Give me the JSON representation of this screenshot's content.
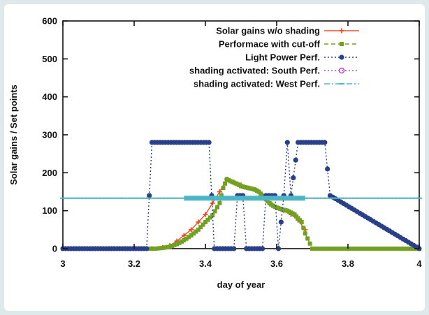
{
  "chart_data": {
    "type": "line",
    "title": "",
    "xlabel": "day of year",
    "ylabel": "Solar gains / Set points",
    "xlim": [
      3,
      4
    ],
    "ylim": [
      0,
      600
    ],
    "x_ticks": [
      "3",
      "3.2",
      "3.4",
      "3.6",
      "3.8",
      "4"
    ],
    "y_ticks": [
      "0",
      "100",
      "200",
      "300",
      "400",
      "500",
      "600"
    ],
    "grid": false,
    "legend_position": "top-right",
    "series": [
      {
        "name": "Solar gains w/o shading",
        "color": "#e8502a",
        "marker": "plus",
        "dash": "solid",
        "x": [
          3.25,
          3.28,
          3.3,
          3.32,
          3.34,
          3.36,
          3.38,
          3.4,
          3.42,
          3.44,
          3.46,
          3.48,
          3.5,
          3.52,
          3.54,
          3.56,
          3.58,
          3.6,
          3.62,
          3.64,
          3.66,
          3.68
        ],
        "values": [
          0,
          3,
          8,
          20,
          35,
          50,
          70,
          90,
          120,
          150,
          183,
          175,
          168,
          160,
          155,
          140,
          118,
          108,
          100,
          90,
          75,
          50
        ]
      },
      {
        "name": "Performace with cut-off",
        "color": "#73a020",
        "marker": "square",
        "dash": "dashed",
        "x": [
          3.0,
          3.1,
          3.2,
          3.24,
          3.26,
          3.28,
          3.3,
          3.32,
          3.34,
          3.36,
          3.38,
          3.4,
          3.42,
          3.44,
          3.45,
          3.46,
          3.47,
          3.48,
          3.49,
          3.5,
          3.51,
          3.52,
          3.53,
          3.54,
          3.55,
          3.56,
          3.57,
          3.58,
          3.59,
          3.6,
          3.61,
          3.62,
          3.63,
          3.64,
          3.65,
          3.66,
          3.67,
          3.68,
          3.7,
          3.72,
          3.75,
          3.8,
          3.9,
          4.0
        ],
        "values": [
          0,
          0,
          0,
          0,
          0,
          2,
          5,
          12,
          22,
          35,
          50,
          70,
          88,
          120,
          160,
          183,
          178,
          174,
          170,
          165,
          162,
          160,
          158,
          155,
          150,
          140,
          130,
          120,
          113,
          108,
          105,
          102,
          100,
          95,
          90,
          80,
          70,
          40,
          0,
          0,
          0,
          0,
          0,
          0
        ]
      },
      {
        "name": "Light Power Perf.",
        "color": "#2a3f8a",
        "marker": "star",
        "dash": "dotted",
        "x": [
          3.0,
          3.235,
          3.25,
          3.41,
          3.425,
          3.48,
          3.49,
          3.505,
          3.515,
          3.56,
          3.57,
          3.595,
          3.605,
          3.62,
          3.63,
          3.64,
          3.66,
          3.735,
          3.75,
          4.0
        ],
        "values": [
          0,
          0,
          280,
          280,
          0,
          0,
          140,
          140,
          0,
          0,
          140,
          140,
          0,
          140,
          280,
          140,
          280,
          280,
          140,
          0
        ]
      },
      {
        "name": "shading activated: South Perf.",
        "color": "#b04abf",
        "marker": "circle",
        "dash": "dotted",
        "x": [],
        "values": []
      },
      {
        "name": "shading activated: West Perf.",
        "color": "#4db6c4",
        "marker": "dash",
        "dash": "dashdot",
        "x": [
          3.0,
          4.0
        ],
        "values": [
          133,
          133
        ],
        "band_x": [
          3.34,
          3.68
        ],
        "band_value": 133
      }
    ]
  }
}
